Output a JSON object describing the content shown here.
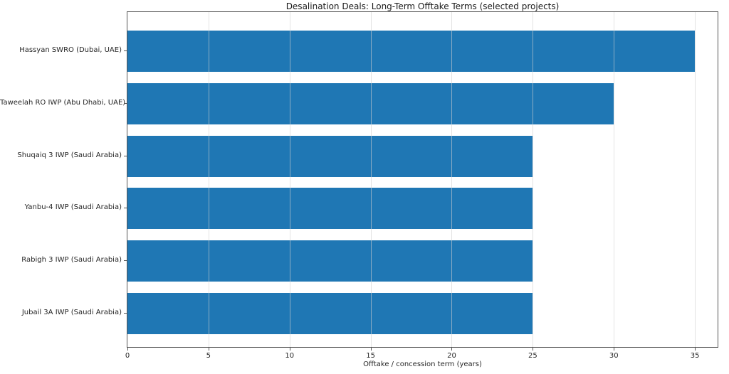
{
  "chart_data": {
    "type": "bar",
    "orientation": "horizontal",
    "title": "Desalination Deals: Long-Term Offtake Terms (selected projects)",
    "xlabel": "Offtake / concession term (years)",
    "ylabel": "",
    "categories": [
      "Hassyan SWRO (Dubai, UAE)",
      "Taweelah RO IWP (Abu Dhabi, UAE)",
      "Shuqaiq 3 IWP (Saudi Arabia)",
      "Yanbu-4 IWP (Saudi Arabia)",
      "Rabigh 3 IWP (Saudi Arabia)",
      "Jubail 3A IWP (Saudi Arabia)"
    ],
    "values": [
      35,
      30,
      25,
      25,
      25,
      25
    ],
    "xticks": [
      0,
      5,
      10,
      15,
      20,
      25,
      30,
      35
    ],
    "xlim": [
      0,
      36.4
    ],
    "grid": true,
    "legend": false,
    "bar_color": "#1f77b4"
  },
  "colors": {
    "bar": "#1f77b4",
    "spine": "#555555",
    "text": "#262626",
    "grid_overlay": "rgba(208,208,208,0.6)"
  }
}
